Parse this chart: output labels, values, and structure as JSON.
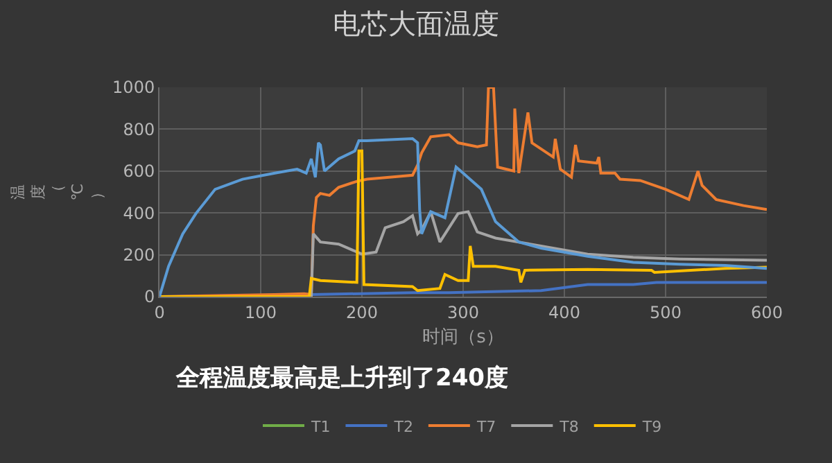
{
  "chart_data": {
    "type": "line",
    "title": "电芯大面温度",
    "xlabel": "时间（s）",
    "ylabel": "温度（℃）",
    "xlim": [
      0,
      600
    ],
    "xticks": [
      0,
      100,
      200,
      300,
      400,
      500,
      600
    ],
    "ylim": [
      0,
      1000
    ],
    "yticks": [
      0,
      200,
      400,
      600,
      800,
      1000
    ],
    "grid": true,
    "legend": "bottom",
    "marker": "none",
    "line_style": "solid",
    "annotations": [
      "全程温度最高是上升到了240度"
    ],
    "series": [
      {
        "name": "T1",
        "color": "#70ad47"
      },
      {
        "name": "T2",
        "color": "#4472c4",
        "x": [
          0,
          150,
          250,
          286,
          377,
          423,
          468,
          491,
          600
        ],
        "values": [
          0,
          10,
          19,
          19,
          29,
          58,
          58,
          68,
          68
        ]
      },
      {
        "name": "T7",
        "color": "#ed7d31",
        "x": [
          0,
          114,
          143,
          150,
          152,
          155,
          159,
          168,
          177,
          195,
          205,
          250,
          255,
          259,
          268,
          286,
          295,
          314,
          323,
          325,
          330,
          334,
          350,
          351,
          355,
          364,
          368,
          389,
          391,
          396,
          407,
          411,
          414,
          432,
          434,
          436,
          450,
          455,
          475,
          500,
          523,
          532,
          536,
          550,
          577,
          600
        ],
        "values": [
          0,
          10,
          14,
          10,
          338,
          474,
          493,
          484,
          522,
          551,
          561,
          580,
          629,
          687,
          764,
          774,
          735,
          716,
          725,
          1000,
          1000,
          619,
          600,
          899,
          590,
          880,
          735,
          667,
          754,
          609,
          571,
          725,
          648,
          638,
          667,
          590,
          590,
          561,
          555,
          513,
          464,
          600,
          532,
          464,
          435,
          416
        ]
      },
      {
        "name": "T8",
        "color": "#a5a5a5",
        "x": [
          0,
          150,
          152,
          159,
          177,
          200,
          214,
          223,
          241,
          250,
          255,
          259,
          268,
          277,
          295,
          305,
          314,
          332,
          377,
          423,
          468,
          514,
          600
        ],
        "values": [
          0,
          0,
          300,
          261,
          251,
          203,
          213,
          329,
          358,
          387,
          300,
          319,
          406,
          261,
          397,
          406,
          309,
          280,
          242,
          203,
          188,
          180,
          174
        ]
      },
      {
        "name": "T9",
        "color": "#ffc000",
        "x": [
          0,
          148,
          150,
          159,
          195,
          197,
          200,
          202,
          250,
          255,
          277,
          282,
          295,
          305,
          307,
          310,
          332,
          355,
          357,
          361,
          423,
          486,
          489,
          559,
          600
        ],
        "values": [
          0,
          0,
          87,
          77,
          68,
          696,
          696,
          58,
          48,
          29,
          39,
          106,
          77,
          77,
          242,
          145,
          145,
          126,
          68,
          126,
          130,
          126,
          116,
          135,
          141
        ]
      },
      {
        "color": "#5b9bd5",
        "x": [
          0,
          9,
          23,
          36,
          55,
          82,
          114,
          136,
          145,
          150,
          154,
          157,
          159,
          163,
          177,
          193,
          197,
          205,
          250,
          255,
          257,
          259,
          268,
          282,
          293,
          300,
          318,
          332,
          355,
          377,
          423,
          468,
          514,
          559,
          600
        ],
        "values": [
          0,
          145,
          300,
          397,
          513,
          561,
          590,
          609,
          590,
          658,
          570,
          735,
          725,
          600,
          658,
          696,
          745,
          745,
          755,
          735,
          416,
          300,
          406,
          377,
          619,
          590,
          513,
          358,
          261,
          232,
          193,
          164,
          155,
          149,
          135
        ]
      }
    ]
  }
}
